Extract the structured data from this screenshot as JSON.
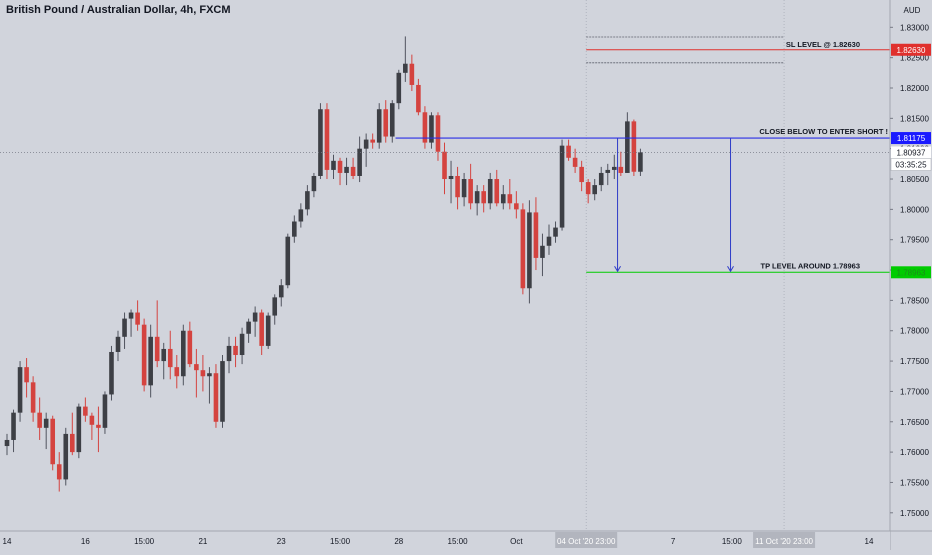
{
  "header": {
    "title": "British Pound / Australian Dollar, 4h, FXCM"
  },
  "price_axis": {
    "currency": "AUD",
    "ticks": [
      "1.83000",
      "1.82500",
      "1.82000",
      "1.81500",
      "1.81000",
      "1.80500",
      "1.80000",
      "1.79500",
      "1.79000",
      "1.78500",
      "1.78000",
      "1.77500",
      "1.77000",
      "1.76500",
      "1.76000",
      "1.75500",
      "1.75000"
    ]
  },
  "time_axis": {
    "ticks": [
      {
        "label": "14",
        "bar": 0
      },
      {
        "label": "16",
        "bar": 12
      },
      {
        "label": "15:00",
        "bar": 21
      },
      {
        "label": "21",
        "bar": 30
      },
      {
        "label": "23",
        "bar": 42
      },
      {
        "label": "15:00",
        "bar": 51
      },
      {
        "label": "28",
        "bar": 60
      },
      {
        "label": "15:00",
        "bar": 69
      },
      {
        "label": "Oct",
        "bar": 78
      },
      {
        "label": "7",
        "bar": 102
      },
      {
        "label": "15:00",
        "bar": 111
      },
      {
        "label": "14",
        "bar": 132
      }
    ],
    "highlights": [
      {
        "label": "04 Oct '20",
        "time": "23:00",
        "bar": 88.7
      },
      {
        "label": "11 Oct '20",
        "time": "23:00",
        "bar": 119
      }
    ]
  },
  "colors": {
    "background": "#d1d4dc",
    "up_candle": "#3d3f45",
    "down_candle": "#d4433f",
    "wick": "#50535e",
    "sl_line": "#e0302d",
    "entry_line": "#2a2ee6",
    "tp_line": "#00cc00",
    "arrow": "#2f3cc8",
    "text": "#131722"
  },
  "annotations": {
    "sl": {
      "text": "SL LEVEL @ 1.82630",
      "price": 1.8263,
      "badge": "1.82630"
    },
    "entry": {
      "text": "CLOSE BELOW TO ENTER SHORT !",
      "price": 1.81175,
      "badge": "1.81175"
    },
    "tp": {
      "text": "TP LEVEL AROUND 1.78963",
      "price": 1.78963,
      "badge": "1.78963"
    },
    "current": {
      "price": 1.80937,
      "badge": "1.80937",
      "countdown": "03:35:25"
    },
    "box_top_price": 1.8284,
    "box_bottom_price": 1.82415
  },
  "chart_data": {
    "type": "candlestick",
    "symbol": "British Pound / Australian Dollar",
    "timeframe": "4h",
    "source": "FXCM",
    "y_range": [
      1.747,
      1.8345
    ],
    "candles": [
      [
        1.761,
        1.763,
        1.7595,
        1.762
      ],
      [
        1.762,
        1.767,
        1.76,
        1.7665
      ],
      [
        1.7665,
        1.775,
        1.765,
        1.774
      ],
      [
        1.774,
        1.7755,
        1.769,
        1.7715
      ],
      [
        1.7715,
        1.7725,
        1.765,
        1.7665
      ],
      [
        1.7665,
        1.769,
        1.762,
        1.764
      ],
      [
        1.764,
        1.7665,
        1.7605,
        1.7655
      ],
      [
        1.7655,
        1.766,
        1.757,
        1.758
      ],
      [
        1.758,
        1.76,
        1.7535,
        1.7555
      ],
      [
        1.7555,
        1.764,
        1.7545,
        1.763
      ],
      [
        1.763,
        1.7665,
        1.7595,
        1.76
      ],
      [
        1.76,
        1.768,
        1.759,
        1.7675
      ],
      [
        1.7675,
        1.769,
        1.765,
        1.766
      ],
      [
        1.766,
        1.7665,
        1.762,
        1.7645
      ],
      [
        1.7645,
        1.7675,
        1.76,
        1.764
      ],
      [
        1.764,
        1.77,
        1.763,
        1.7695
      ],
      [
        1.7695,
        1.7775,
        1.7685,
        1.7765
      ],
      [
        1.7765,
        1.78,
        1.775,
        1.779
      ],
      [
        1.779,
        1.783,
        1.777,
        1.782
      ],
      [
        1.782,
        1.7835,
        1.779,
        1.783
      ],
      [
        1.783,
        1.785,
        1.78,
        1.781
      ],
      [
        1.781,
        1.782,
        1.77,
        1.771
      ],
      [
        1.771,
        1.781,
        1.769,
        1.779
      ],
      [
        1.779,
        1.785,
        1.774,
        1.775
      ],
      [
        1.775,
        1.778,
        1.772,
        1.777
      ],
      [
        1.777,
        1.78,
        1.772,
        1.774
      ],
      [
        1.774,
        1.776,
        1.7705,
        1.7725
      ],
      [
        1.7725,
        1.781,
        1.771,
        1.78
      ],
      [
        1.78,
        1.7815,
        1.774,
        1.7745
      ],
      [
        1.7745,
        1.777,
        1.769,
        1.7735
      ],
      [
        1.7735,
        1.776,
        1.77,
        1.7725
      ],
      [
        1.7725,
        1.774,
        1.768,
        1.773
      ],
      [
        1.773,
        1.7745,
        1.764,
        1.765
      ],
      [
        1.765,
        1.776,
        1.764,
        1.775
      ],
      [
        1.775,
        1.779,
        1.773,
        1.7775
      ],
      [
        1.7775,
        1.779,
        1.774,
        1.776
      ],
      [
        1.776,
        1.7805,
        1.7745,
        1.7795
      ],
      [
        1.7795,
        1.782,
        1.778,
        1.7815
      ],
      [
        1.7815,
        1.784,
        1.779,
        1.783
      ],
      [
        1.783,
        1.7835,
        1.776,
        1.7775
      ],
      [
        1.7775,
        1.783,
        1.777,
        1.7825
      ],
      [
        1.7825,
        1.786,
        1.781,
        1.7855
      ],
      [
        1.7855,
        1.7885,
        1.784,
        1.7875
      ],
      [
        1.7875,
        1.796,
        1.787,
        1.7955
      ],
      [
        1.7955,
        1.799,
        1.7945,
        1.798
      ],
      [
        1.798,
        1.801,
        1.797,
        1.8
      ],
      [
        1.8,
        1.804,
        1.799,
        1.803
      ],
      [
        1.803,
        1.806,
        1.802,
        1.8055
      ],
      [
        1.8055,
        1.8175,
        1.805,
        1.8165
      ],
      [
        1.8165,
        1.8175,
        1.805,
        1.8065
      ],
      [
        1.8065,
        1.809,
        1.805,
        1.808
      ],
      [
        1.808,
        1.8085,
        1.804,
        1.806
      ],
      [
        1.806,
        1.8085,
        1.804,
        1.807
      ],
      [
        1.807,
        1.8085,
        1.805,
        1.8055
      ],
      [
        1.8055,
        1.812,
        1.8045,
        1.81
      ],
      [
        1.81,
        1.8125,
        1.807,
        1.8115
      ],
      [
        1.8115,
        1.8125,
        1.81,
        1.811
      ],
      [
        1.811,
        1.8175,
        1.81,
        1.8165
      ],
      [
        1.8165,
        1.818,
        1.811,
        1.812
      ],
      [
        1.812,
        1.818,
        1.811,
        1.8175
      ],
      [
        1.8175,
        1.823,
        1.8165,
        1.8225
      ],
      [
        1.8225,
        1.8285,
        1.821,
        1.824
      ],
      [
        1.824,
        1.8255,
        1.8195,
        1.8205
      ],
      [
        1.8205,
        1.8215,
        1.8155,
        1.816
      ],
      [
        1.816,
        1.817,
        1.81,
        1.811
      ],
      [
        1.811,
        1.816,
        1.81,
        1.8155
      ],
      [
        1.8155,
        1.816,
        1.808,
        1.8095
      ],
      [
        1.8095,
        1.811,
        1.8025,
        1.805
      ],
      [
        1.805,
        1.808,
        1.801,
        1.8055
      ],
      [
        1.8055,
        1.807,
        1.8,
        1.802
      ],
      [
        1.802,
        1.806,
        1.8005,
        1.805
      ],
      [
        1.805,
        1.8075,
        1.8,
        1.801
      ],
      [
        1.801,
        1.804,
        1.799,
        1.803
      ],
      [
        1.803,
        1.804,
        1.7995,
        1.801
      ],
      [
        1.801,
        1.806,
        1.8,
        1.805
      ],
      [
        1.805,
        1.8065,
        1.8005,
        1.801
      ],
      [
        1.801,
        1.804,
        1.8,
        1.8025
      ],
      [
        1.8025,
        1.805,
        1.8,
        1.801
      ],
      [
        1.801,
        1.803,
        1.7985,
        1.8
      ],
      [
        1.8,
        1.801,
        1.786,
        1.787
      ],
      [
        1.787,
        1.8015,
        1.7845,
        1.7995
      ],
      [
        1.7995,
        1.802,
        1.79,
        1.792
      ],
      [
        1.792,
        1.796,
        1.789,
        1.794
      ],
      [
        1.794,
        1.7975,
        1.7925,
        1.7955
      ],
      [
        1.7955,
        1.798,
        1.7945,
        1.797
      ],
      [
        1.797,
        1.8115,
        1.7965,
        1.8105
      ],
      [
        1.8105,
        1.8115,
        1.808,
        1.8085
      ],
      [
        1.8085,
        1.81,
        1.806,
        1.807
      ],
      [
        1.807,
        1.808,
        1.803,
        1.8045
      ],
      [
        1.8045,
        1.805,
        1.801,
        1.8025
      ],
      [
        1.8025,
        1.805,
        1.8015,
        1.804
      ],
      [
        1.804,
        1.807,
        1.803,
        1.806
      ],
      [
        1.806,
        1.8075,
        1.804,
        1.8065
      ],
      [
        1.8065,
        1.809,
        1.805,
        1.807
      ],
      [
        1.807,
        1.8095,
        1.8055,
        1.806
      ],
      [
        1.806,
        1.816,
        1.806,
        1.8145
      ],
      [
        1.8145,
        1.8148,
        1.8055,
        1.8062
      ],
      [
        1.8062,
        1.81,
        1.8055,
        1.8094
      ]
    ]
  }
}
